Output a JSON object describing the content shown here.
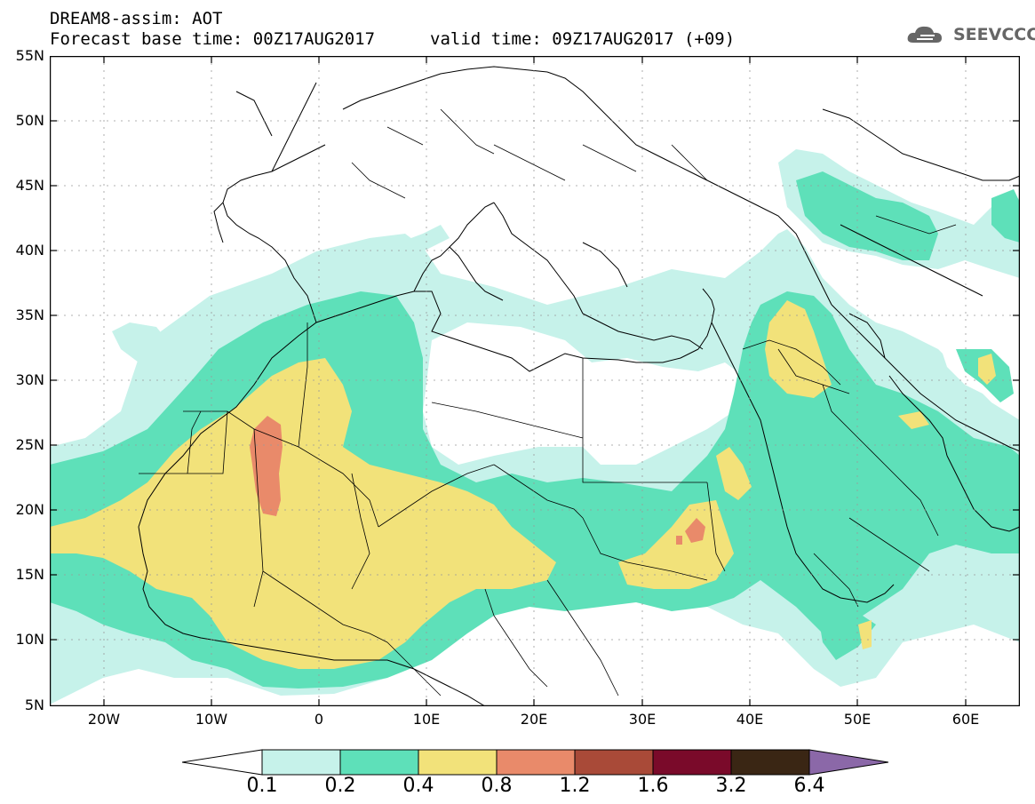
{
  "header": {
    "title": "DREAM8-assim: AOT",
    "base_time": "Forecast base time: 00Z17AUG2017",
    "valid_time": "valid time: 09Z17AUG2017 (+09)"
  },
  "logo": {
    "text": "SEEVCCC",
    "icon": "cloud-logo-icon"
  },
  "map": {
    "projection": "latlon",
    "lon_range": [
      -25,
      65
    ],
    "lat_range": [
      5,
      55
    ],
    "grid": true,
    "y_ticks": [
      "55N",
      "50N",
      "45N",
      "40N",
      "35N",
      "30N",
      "25N",
      "20N",
      "15N",
      "10N",
      "5N"
    ],
    "x_ticks": [
      "20W",
      "10W",
      "0",
      "10E",
      "20E",
      "30E",
      "40E",
      "50E",
      "60E"
    ]
  },
  "legend": {
    "levels": [
      "0.1",
      "0.2",
      "0.4",
      "0.8",
      "1.2",
      "1.6",
      "3.2",
      "6.4"
    ],
    "colors": [
      "#ffffff",
      "#c6f2ea",
      "#5ee0b9",
      "#f2e27a",
      "#e98a6a",
      "#a94a38",
      "#7a0a2a",
      "#3a2614",
      "#8b68a8"
    ]
  },
  "colors": {
    "aot_01_02": "#c6f2ea",
    "aot_02_04": "#5ee0b9",
    "aot_04_08": "#f2e27a",
    "aot_08_12": "#e98a6a"
  }
}
